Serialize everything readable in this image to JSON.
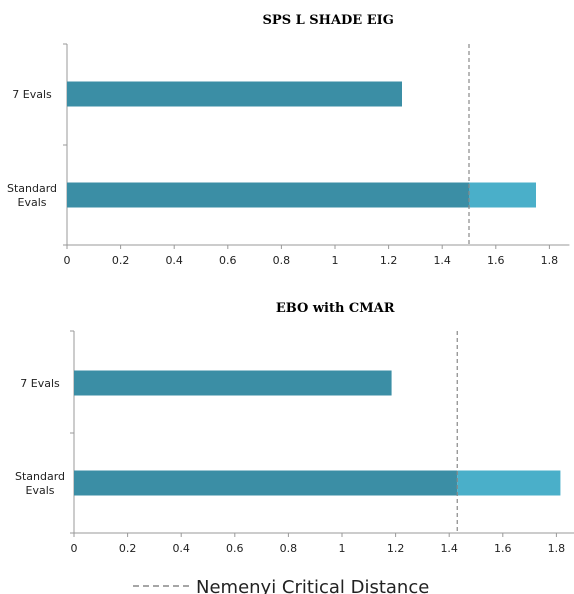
{
  "chart_data": [
    {
      "type": "bar",
      "orientation": "horizontal",
      "stacked": true,
      "title": "SPS L SHADE EIG",
      "categories": [
        "7 Evals",
        "Standard Evals"
      ],
      "category_lines": [
        [
          "7 Evals"
        ],
        [
          "Standard",
          "Evals"
        ]
      ],
      "values": [
        1.25,
        1.75
      ],
      "critical_distance": 1.5,
      "xlim": [
        0,
        1.8
      ],
      "xticks": [
        0,
        0.2,
        0.4,
        0.6,
        0.8,
        1,
        1.2,
        1.4,
        1.6,
        1.8
      ],
      "xtick_labels": [
        "0",
        "0.2",
        "0.4",
        "0.6",
        "0.8",
        "1",
        "1.2",
        "1.4",
        "1.6",
        "1.8"
      ],
      "grid": false
    },
    {
      "type": "bar",
      "orientation": "horizontal",
      "stacked": true,
      "title": "EBO with CMAR",
      "categories": [
        "7 Evals",
        "Standard Evals"
      ],
      "category_lines": [
        [
          "7 Evals"
        ],
        [
          "Standard",
          "Evals"
        ]
      ],
      "values": [
        1.185,
        1.815
      ],
      "critical_distance": 1.43,
      "xlim": [
        0,
        1.8
      ],
      "xticks": [
        0,
        0.2,
        0.4,
        0.6,
        0.8,
        1,
        1.2,
        1.4,
        1.6,
        1.8
      ],
      "xtick_labels": [
        "0",
        "0.2",
        "0.4",
        "0.6",
        "0.8",
        "1",
        "1.2",
        "1.4",
        "1.6",
        "1.8"
      ],
      "grid": false
    }
  ],
  "legend": {
    "label": "Nemenyi Critical Distance",
    "placement": "bottom-center",
    "line_style": "dashed"
  },
  "colors": {
    "bar_main": "#3b8ea5",
    "bar_above_cd": "#4aafc9",
    "cd_line": "#888888",
    "axis": "#999999"
  }
}
